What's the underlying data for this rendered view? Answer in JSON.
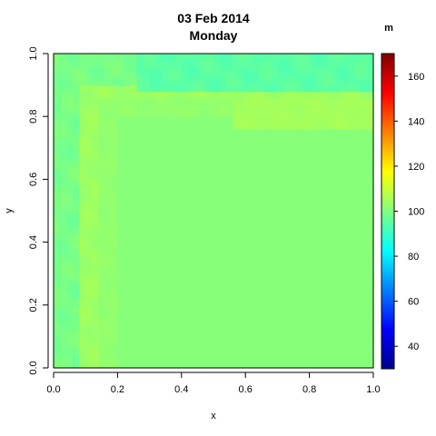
{
  "chart_data": {
    "type": "heatmap",
    "title": "03 Feb 2014",
    "subtitle": "Monday",
    "xlabel": "x",
    "ylabel": "y",
    "xlim": [
      0,
      1
    ],
    "ylim": [
      0,
      1
    ],
    "x_ticks": [
      "0.0",
      "0.2",
      "0.4",
      "0.6",
      "0.8",
      "1.0"
    ],
    "y_ticks": [
      "0.0",
      "0.2",
      "0.4",
      "0.6",
      "0.8",
      "1.0"
    ],
    "colorbar": {
      "label": "m",
      "range": [
        30,
        170
      ],
      "ticks": [
        "40",
        "60",
        "80",
        "100",
        "120",
        "140",
        "160"
      ],
      "colormap": [
        "#00008f",
        "#0000ff",
        "#0080ff",
        "#00ffff",
        "#80ff80",
        "#ffff00",
        "#ff8000",
        "#ff0000",
        "#800000"
      ]
    },
    "grid_resolution": 50,
    "background_value": 101,
    "features": [
      {
        "description": "near-background band in the corner region",
        "value": 99
      },
      {
        "description": "slightly elevated ridge arc",
        "value": 104
      },
      {
        "description": "lower cyan-green band along the top edge",
        "value": 95
      }
    ]
  }
}
